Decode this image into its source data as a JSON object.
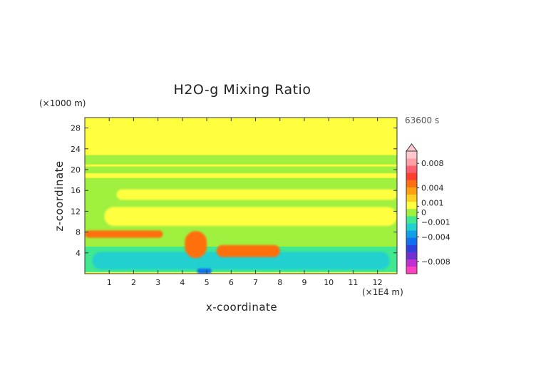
{
  "chart_data": {
    "type": "heatmap",
    "title": "H2O-g Mixing Ratio",
    "xlabel": "x-coordinate",
    "ylabel": "z-coordinate",
    "x_unit": "(×1E4 m)",
    "y_unit": "(×1000 m)",
    "time_label": "63600 s",
    "xlim": [
      0,
      12.8
    ],
    "ylim": [
      0,
      30
    ],
    "x_ticks": [
      "1",
      "2",
      "3",
      "4",
      "5",
      "6",
      "7",
      "8",
      "9",
      "10",
      "11",
      "12"
    ],
    "y_ticks": [
      "4",
      "8",
      "12",
      "16",
      "20",
      "24",
      "28"
    ],
    "colorbar": {
      "tick_labels": [
        "0.008",
        "0.004",
        "0.001",
        "0",
        "−0.001",
        "−0.004",
        "−0.008"
      ],
      "tick_values": [
        0.008,
        0.004,
        0.001,
        0,
        -0.001,
        -0.004,
        -0.008
      ],
      "range": [
        -0.01,
        0.01
      ],
      "colors": [
        "#ff40c0",
        "#c030d0",
        "#7030d0",
        "#3040e0",
        "#1070f0",
        "#10a0e8",
        "#20d0d0",
        "#40e890",
        "#a0f040",
        "#ffff40",
        "#ffd020",
        "#ffa010",
        "#ff7010",
        "#ff4030",
        "#ff6070",
        "#ffa0a8",
        "#ffc8d0"
      ]
    },
    "regions": [
      {
        "level": 0.0002,
        "color": "#ffff40",
        "x": [
          0,
          12.8
        ],
        "z": [
          0,
          30
        ]
      },
      {
        "level": -0.0002,
        "color": "#a0f040",
        "x": [
          0,
          12.8
        ],
        "z": [
          19.3,
          22.8
        ]
      },
      {
        "level": 0.0001,
        "color": "#ffff40",
        "x": [
          0,
          12.8
        ],
        "z": [
          20.6,
          21.0
        ]
      },
      {
        "level": -0.0002,
        "color": "#a0f040",
        "x": [
          0,
          12.8
        ],
        "z": [
          1,
          18.4
        ]
      },
      {
        "level": 0.0002,
        "color": "#ffff40",
        "x": [
          1.3,
          12.8
        ],
        "z": [
          14.2,
          16.2
        ]
      },
      {
        "level": 0.0003,
        "color": "#ffff40",
        "x": [
          0.8,
          12.8
        ],
        "z": [
          9.2,
          12.8
        ]
      },
      {
        "level": -0.0005,
        "color": "#40e890",
        "x": [
          0,
          12.8
        ],
        "z": [
          0.3,
          5.2
        ]
      },
      {
        "level": -0.0015,
        "color": "#20d0d0",
        "x": [
          0.3,
          12.5
        ],
        "z": [
          0.8,
          4.2
        ]
      },
      {
        "level": 0.004,
        "color": "#ff7010",
        "x": [
          0,
          3.2
        ],
        "z": [
          6.9,
          8.3
        ]
      },
      {
        "level": 0.004,
        "color": "#ff7010",
        "x": [
          4.1,
          5.0
        ],
        "z": [
          3.0,
          8.2
        ]
      },
      {
        "level": 0.004,
        "color": "#ff7010",
        "x": [
          5.4,
          8.0
        ],
        "z": [
          3.2,
          5.5
        ]
      },
      {
        "level": -0.004,
        "color": "#1070f0",
        "x": [
          4.6,
          5.2
        ],
        "z": [
          0,
          1.0
        ]
      }
    ]
  }
}
